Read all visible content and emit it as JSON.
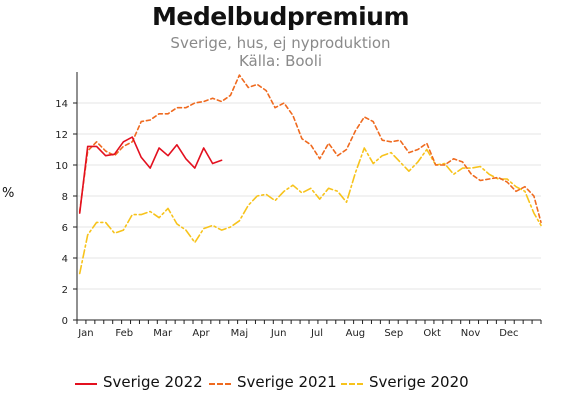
{
  "header": {
    "title": "Medelbudpremium",
    "subtitle": "Sverige, hus, ej nyproduktion",
    "source": "Källa: Booli"
  },
  "chart_data": {
    "type": "line",
    "title": "Medelbudpremium",
    "subtitle": "Sverige, hus, ej nyproduktion",
    "source": "Källa: Booli",
    "ylabel": "%",
    "xlabel": "",
    "xlim": [
      0,
      52
    ],
    "ylim": [
      0,
      16
    ],
    "yticks": [
      0,
      2,
      4,
      6,
      8,
      10,
      12,
      14
    ],
    "month_labels": [
      "Jan",
      "Feb",
      "Mar",
      "Apr",
      "Maj",
      "Jun",
      "Jul",
      "Aug",
      "Sep",
      "Okt",
      "Nov",
      "Dec"
    ],
    "month_positions": [
      1,
      5.3,
      9.6,
      13.9,
      18.2,
      22.6,
      26.9,
      31.2,
      35.5,
      39.8,
      44.1,
      48.4
    ],
    "grid": "horizontal",
    "legend_position": "bottom",
    "series": [
      {
        "name": "Sverige 2022",
        "color": "#e3101f",
        "dash": "solid",
        "x": [
          0.3,
          1.2,
          2.2,
          3.2,
          4.2,
          5.2,
          6.2,
          7.2,
          8.2,
          9.2,
          10.2,
          11.2,
          12.2,
          13.2,
          14.2,
          15.2,
          16.2
        ],
        "y": [
          6.9,
          11.2,
          11.2,
          10.6,
          10.7,
          11.5,
          11.8,
          10.5,
          9.8,
          11.1,
          10.6,
          11.3,
          10.4,
          9.8,
          11.1,
          10.1,
          10.3
        ]
      },
      {
        "name": "Sverige 2021",
        "color": "#ef6a1f",
        "dash": "dashed",
        "x": [
          0.3,
          1.2,
          2.2,
          3.2,
          4.2,
          5.2,
          6.2,
          7.2,
          8.2,
          9.2,
          10.2,
          11.2,
          12.2,
          13.2,
          14.2,
          15.2,
          16.2,
          17.2,
          18.2,
          19.2,
          20.2,
          21.2,
          22.2,
          23.2,
          24.2,
          25.2,
          26.2,
          27.2,
          28.2,
          29.2,
          30.2,
          31.2,
          32.2,
          33.2,
          34.2,
          35.2,
          36.2,
          37.2,
          38.2,
          39.2,
          40.2,
          41.2,
          42.2,
          43.2,
          44.2,
          45.2,
          46.2,
          47.2,
          48.2,
          49.2,
          50.2,
          51.2,
          52.0
        ],
        "y": [
          7.0,
          10.9,
          11.5,
          10.9,
          10.6,
          11.2,
          11.5,
          12.8,
          12.9,
          13.3,
          13.3,
          13.7,
          13.7,
          14.0,
          14.1,
          14.3,
          14.1,
          14.5,
          15.8,
          15.0,
          15.2,
          14.8,
          13.7,
          14.0,
          13.2,
          11.7,
          11.3,
          10.4,
          11.4,
          10.6,
          11.0,
          12.2,
          13.1,
          12.8,
          11.6,
          11.5,
          11.6,
          10.8,
          11.0,
          11.4,
          10.0,
          10.0,
          10.4,
          10.2,
          9.4,
          9.0,
          9.1,
          9.2,
          8.9,
          8.3,
          8.6,
          8.0,
          6.3
        ]
      },
      {
        "name": "Sverige 2020",
        "color": "#f7c31c",
        "dash": "dashdot",
        "x": [
          0.3,
          1.2,
          2.2,
          3.2,
          4.2,
          5.2,
          6.2,
          7.2,
          8.2,
          9.2,
          10.2,
          11.2,
          12.2,
          13.2,
          14.2,
          15.2,
          16.2,
          17.2,
          18.2,
          19.2,
          20.2,
          21.2,
          22.2,
          23.2,
          24.2,
          25.2,
          26.2,
          27.2,
          28.2,
          29.2,
          30.2,
          31.2,
          32.2,
          33.2,
          34.2,
          35.2,
          36.2,
          37.2,
          38.2,
          39.2,
          40.2,
          41.2,
          42.2,
          43.2,
          44.2,
          45.2,
          46.2,
          47.2,
          48.2,
          49.2,
          50.2,
          51.2,
          52.0
        ],
        "y": [
          3.0,
          5.5,
          6.3,
          6.3,
          5.6,
          5.8,
          6.8,
          6.8,
          7.0,
          6.6,
          7.2,
          6.2,
          5.8,
          5.0,
          5.9,
          6.1,
          5.8,
          6.0,
          6.4,
          7.4,
          8.0,
          8.1,
          7.7,
          8.3,
          8.7,
          8.2,
          8.5,
          7.8,
          8.5,
          8.3,
          7.6,
          9.5,
          11.1,
          10.1,
          10.6,
          10.8,
          10.2,
          9.6,
          10.2,
          11.0,
          10.0,
          10.1,
          9.4,
          9.8,
          9.8,
          9.9,
          9.4,
          9.1,
          9.1,
          8.6,
          8.3,
          6.9,
          6.1
        ]
      }
    ]
  }
}
